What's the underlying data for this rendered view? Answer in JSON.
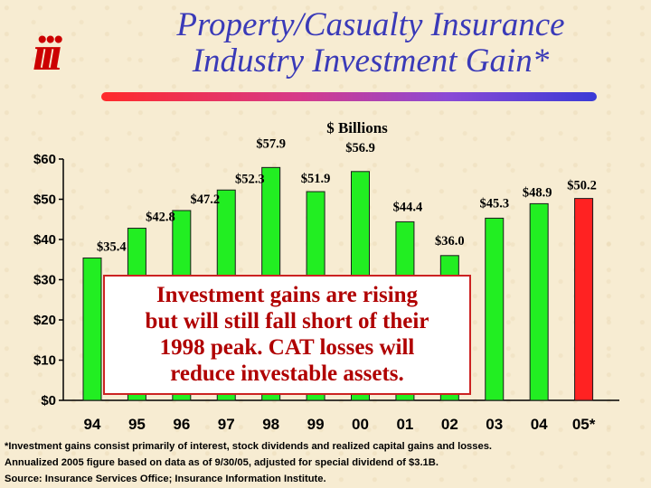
{
  "header": {
    "logo_text": "iii",
    "title_line1": "Property/Casualty Insurance",
    "title_line2": "Industry Investment Gain*"
  },
  "colors": {
    "title": "#3a3ab8",
    "bar_actual": "#22ee22",
    "bar_annualized": "#ff2222",
    "callout_text": "#b00000"
  },
  "chart_data": {
    "type": "bar",
    "unit_label": "$ Billions",
    "categories": [
      "94",
      "95",
      "96",
      "97",
      "98",
      "99",
      "00",
      "01",
      "02",
      "03",
      "04",
      "05*"
    ],
    "values": [
      35.4,
      42.8,
      47.2,
      52.3,
      57.9,
      51.9,
      56.9,
      44.4,
      36.0,
      45.3,
      48.9,
      50.2
    ],
    "value_labels": [
      "$35.4",
      "$42.8",
      "$47.2",
      "$52.3",
      "$57.9",
      "$51.9",
      "$56.9",
      "$44.4",
      "$36.0",
      "$45.3",
      "$48.9",
      "$50.2"
    ],
    "highlight_index": 11,
    "ylim": [
      0,
      60
    ],
    "yticks": [
      0,
      10,
      20,
      30,
      40,
      50,
      60
    ],
    "ytick_labels": [
      "$0",
      "$10",
      "$20",
      "$30",
      "$40",
      "$50",
      "$60"
    ],
    "grid": false,
    "annotation": [
      "Investment gains are rising",
      "but will still fall short of their",
      "1998 peak. CAT losses will",
      "reduce investable assets."
    ]
  },
  "footnote": {
    "line1": "*Investment gains consist primarily of interest, stock dividends and realized capital gains and losses.",
    "line2": "Annualized 2005 figure based on data as of 9/30/05, adjusted for special dividend of $3.1B.",
    "line3": "Source: Insurance Services Office; Insurance Information Institute."
  }
}
